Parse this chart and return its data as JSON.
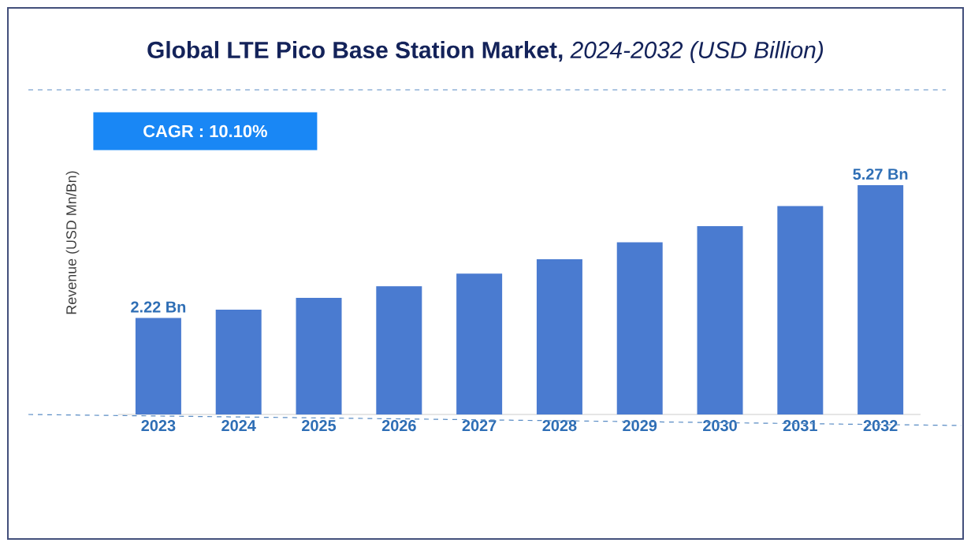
{
  "chart_data": {
    "type": "bar",
    "title": "**Global LTE Pico Base Station Market,** *2024-2032 (USD Billion)*",
    "ylabel": "Revenue (USD Mn/Bn)",
    "annotations": [
      "CAGR : 10.10%"
    ],
    "categories": [
      "2023",
      "2024",
      "2025",
      "2026",
      "2027",
      "2028",
      "2029",
      "2030",
      "2031",
      "2032"
    ],
    "values": [
      2.22,
      2.41,
      2.68,
      2.95,
      3.24,
      3.57,
      3.96,
      4.33,
      4.79,
      5.27
    ],
    "value_labels": [
      "2.22 Bn",
      null,
      null,
      null,
      null,
      null,
      null,
      null,
      null,
      "5.27 Bn"
    ],
    "color": "#4a7bd0"
  }
}
